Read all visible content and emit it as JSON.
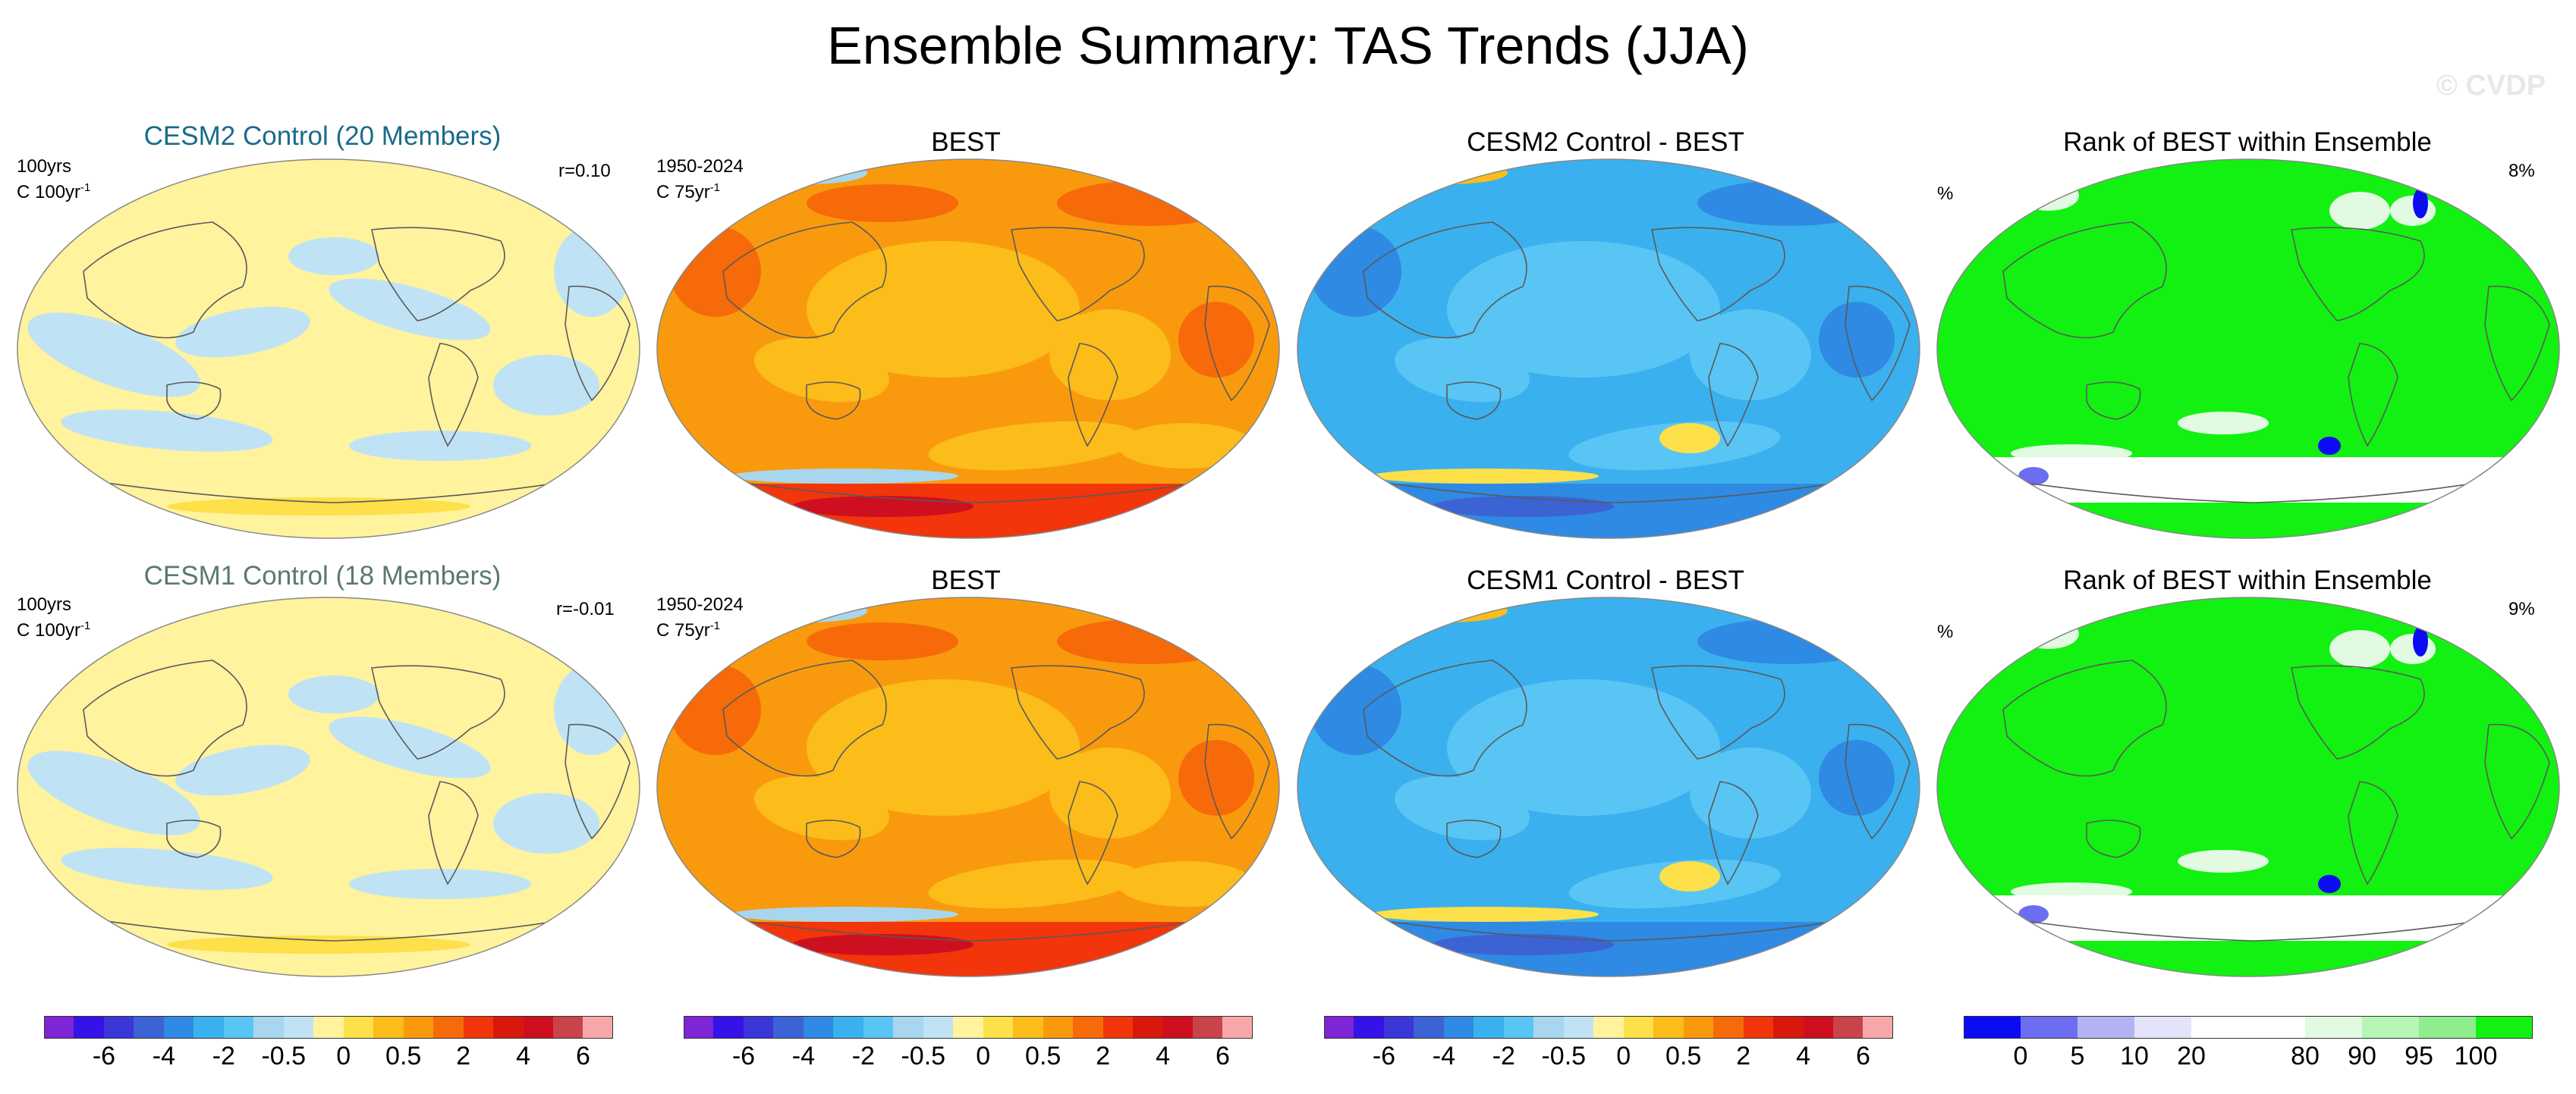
{
  "title": "Ensemble Summary: TAS Trends (JJA)",
  "watermark": "© CVDP",
  "colors": {
    "anom": [
      "#7e25d6",
      "#3512e6",
      "#3a36d8",
      "#3c63d4",
      "#2e8ae3",
      "#3bb0ee",
      "#58c5f5",
      "#a8d6ee",
      "#bfe3f4",
      "#fff39e",
      "#fde04a",
      "#fcbc1a",
      "#f99a0e",
      "#f76a09",
      "#f2350a",
      "#d9180c",
      "#cd0f20",
      "#c9444a",
      "#f8a7a9"
    ],
    "rank": [
      "#0b0bf4",
      "#6d6df2",
      "#b3b3f4",
      "#e3e3fa",
      "#ffffff",
      "#ffffff",
      "#e1fae1",
      "#b6f5b6",
      "#8eee8e",
      "#12f112"
    ]
  },
  "rows": [
    {
      "panels": [
        {
          "title": "CESM2 Control (20 Members)",
          "left_label": "100yrs",
          "units": "C 100yr",
          "units_sup": "-1",
          "right_label": "r=0.10"
        },
        {
          "title": "BEST",
          "left_label": "1950-2024",
          "units": "C 75yr",
          "units_sup": "-1"
        },
        {
          "title": "CESM2 Control - BEST"
        },
        {
          "title": "Rank of BEST within Ensemble",
          "left_label": "%",
          "right_label": "8%"
        }
      ]
    },
    {
      "panels": [
        {
          "title": "CESM1 Control (18 Members)",
          "left_label": "100yrs",
          "units": "C 100yr",
          "units_sup": "-1",
          "right_label": "r=-0.01"
        },
        {
          "title": "BEST",
          "left_label": "1950-2024",
          "units": "C 75yr",
          "units_sup": "-1"
        },
        {
          "title": "CESM1 Control - BEST"
        },
        {
          "title": "Rank of BEST within Ensemble",
          "left_label": "%",
          "right_label": "9%"
        }
      ]
    }
  ],
  "colorbars": {
    "anom_ticks": [
      "-6",
      "-4",
      "-2",
      "-0.5",
      "0",
      "0.5",
      "2",
      "4",
      "6"
    ],
    "rank_ticks": [
      "0",
      "5",
      "10",
      "20",
      "80",
      "90",
      "95",
      "100"
    ]
  },
  "chart_data": {
    "type": "heatmap",
    "title": "Ensemble Summary: TAS Trends (JJA)",
    "projection": "Robinson global maps, centered on Pacific",
    "anomaly_levels": [
      -8,
      -6,
      -5,
      -4,
      -3,
      -2,
      -1,
      -0.5,
      -0.25,
      0,
      0.25,
      0.5,
      1,
      2,
      3,
      4,
      5,
      6,
      8
    ],
    "rank_levels": [
      0,
      5,
      10,
      20,
      40,
      60,
      80,
      90,
      95,
      100
    ],
    "panels": [
      {
        "row": 1,
        "name": "CESM2 Control (20 Members)",
        "period": "100yrs",
        "units": "C 100yr-1",
        "pattern_corr": 0.1,
        "dominant_range": [
          -0.5,
          0.5
        ]
      },
      {
        "row": 1,
        "name": "BEST",
        "period": "1950-2024",
        "units": "C 75yr-1",
        "dominant_range": [
          0.5,
          4
        ]
      },
      {
        "row": 1,
        "name": "CESM2 Control - BEST",
        "dominant_range": [
          -4,
          0
        ]
      },
      {
        "row": 1,
        "name": "Rank of BEST within Ensemble",
        "units": "%",
        "area_outside_range_pct": 8,
        "dominant_range": [
          95,
          100
        ]
      },
      {
        "row": 2,
        "name": "CESM1 Control (18 Members)",
        "period": "100yrs",
        "units": "C 100yr-1",
        "pattern_corr": -0.01,
        "dominant_range": [
          -0.5,
          0.5
        ]
      },
      {
        "row": 2,
        "name": "BEST",
        "period": "1950-2024",
        "units": "C 75yr-1",
        "dominant_range": [
          0.5,
          4
        ]
      },
      {
        "row": 2,
        "name": "CESM1 Control - BEST",
        "dominant_range": [
          -4,
          0
        ]
      },
      {
        "row": 2,
        "name": "Rank of BEST within Ensemble",
        "units": "%",
        "area_outside_range_pct": 9,
        "dominant_range": [
          95,
          100
        ]
      }
    ]
  }
}
